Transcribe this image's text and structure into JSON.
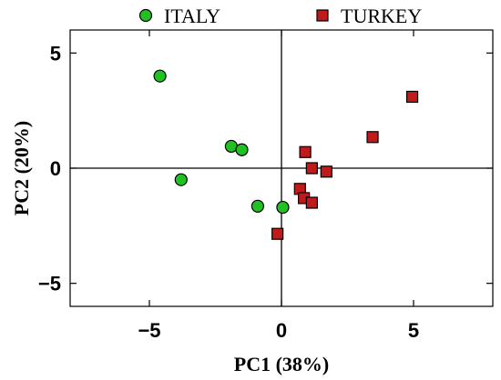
{
  "chart_data": {
    "type": "scatter",
    "xlabel": "PC1 (38%)",
    "ylabel": "PC2 (20%)",
    "xlim": [
      -8,
      8
    ],
    "ylim": [
      -6,
      6
    ],
    "xticks": [
      -5,
      0,
      5
    ],
    "xtick_labels": [
      "−5",
      "0",
      "5"
    ],
    "yticks": [
      -5,
      0,
      5
    ],
    "ytick_labels": [
      "−5",
      "0",
      "5"
    ],
    "zero_lines": true,
    "grid": false,
    "legend_position": "top",
    "series": [
      {
        "name": "ITALY",
        "marker": "circle",
        "color": "#22c022",
        "points": [
          {
            "x": -4.6,
            "y": 4.0
          },
          {
            "x": -3.8,
            "y": -0.5
          },
          {
            "x": -1.9,
            "y": 0.95
          },
          {
            "x": -1.5,
            "y": 0.8
          },
          {
            "x": -0.9,
            "y": -1.65
          },
          {
            "x": 0.05,
            "y": -1.7
          }
        ]
      },
      {
        "name": "TURKEY",
        "marker": "square",
        "color": "#c01a1a",
        "points": [
          {
            "x": 4.95,
            "y": 3.1
          },
          {
            "x": 3.45,
            "y": 1.35
          },
          {
            "x": 0.9,
            "y": 0.7
          },
          {
            "x": 1.15,
            "y": 0.0
          },
          {
            "x": 1.7,
            "y": -0.15
          },
          {
            "x": 0.7,
            "y": -0.9
          },
          {
            "x": 0.85,
            "y": -1.3
          },
          {
            "x": 1.15,
            "y": -1.5
          },
          {
            "x": -0.15,
            "y": -2.85
          }
        ]
      }
    ]
  }
}
